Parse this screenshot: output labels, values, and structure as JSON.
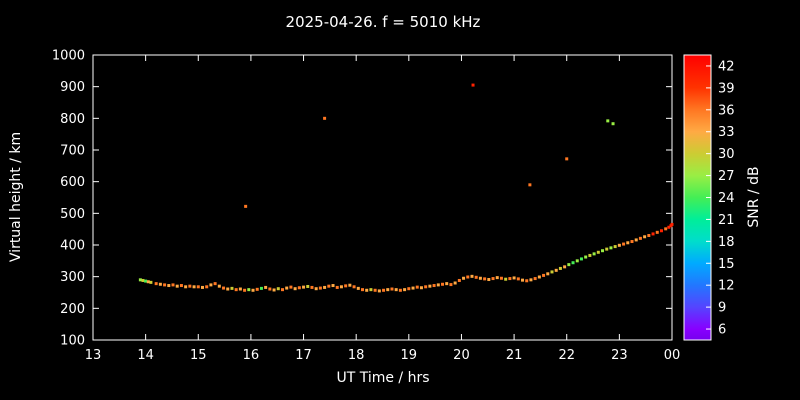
{
  "title": "2025-04-26. f = 5010 kHz",
  "colors": {
    "background": "#000000",
    "foreground": "#ffffff"
  },
  "chart_data": {
    "type": "scatter",
    "title": "2025-04-26. f = 5010 kHz",
    "xlabel": "UT Time / hrs",
    "ylabel": "Virtual height / km",
    "colorbar_label": "SNR / dB",
    "xlim": [
      13,
      24
    ],
    "ylim": [
      100,
      1000
    ],
    "grid": false,
    "x_tick_values": [
      13,
      14,
      15,
      16,
      17,
      18,
      19,
      20,
      21,
      22,
      23,
      24
    ],
    "x_tick_labels": [
      "13",
      "14",
      "15",
      "16",
      "17",
      "18",
      "19",
      "20",
      "21",
      "22",
      "23",
      "00"
    ],
    "y_tick_values": [
      100,
      200,
      300,
      400,
      500,
      600,
      700,
      800,
      900,
      1000
    ],
    "colorbar": {
      "min": 4.5,
      "max": 43.5,
      "tick_values": [
        6,
        9,
        12,
        15,
        18,
        21,
        24,
        27,
        30,
        33,
        36,
        39,
        42
      ],
      "stops": [
        {
          "v": 4.5,
          "c": "#7700ee"
        },
        {
          "v": 6,
          "c": "#8800ff"
        },
        {
          "v": 9,
          "c": "#5544ff"
        },
        {
          "v": 12,
          "c": "#2277ff"
        },
        {
          "v": 15,
          "c": "#00aaff"
        },
        {
          "v": 18,
          "c": "#00ddcc"
        },
        {
          "v": 21,
          "c": "#00ee99"
        },
        {
          "v": 24,
          "c": "#44ee55"
        },
        {
          "v": 27,
          "c": "#99ee44"
        },
        {
          "v": 30,
          "c": "#cccc33"
        },
        {
          "v": 33,
          "c": "#ffaa44"
        },
        {
          "v": 36,
          "c": "#ff7722"
        },
        {
          "v": 39,
          "c": "#ff3300"
        },
        {
          "v": 43.5,
          "c": "#ff0000"
        }
      ]
    },
    "snr_band_min": 6,
    "snr_band_size": 3,
    "palette": [
      "#8800ff",
      "#5544ff",
      "#2277ff",
      "#00aaff",
      "#00ddcc",
      "#00ee99",
      "#44ee55",
      "#99ee44",
      "#cccc33",
      "#ffaa44",
      "#ff7722",
      "#ff2200"
    ],
    "points": [
      [
        13.9,
        290,
        27
      ],
      [
        13.95,
        288,
        30
      ],
      [
        14.0,
        286,
        24
      ],
      [
        14.05,
        284,
        33
      ],
      [
        14.1,
        282,
        30
      ],
      [
        14.2,
        278,
        36
      ],
      [
        14.28,
        276,
        33
      ],
      [
        14.36,
        274,
        36
      ],
      [
        14.44,
        272,
        33
      ],
      [
        14.52,
        274,
        36
      ],
      [
        14.6,
        270,
        33
      ],
      [
        14.68,
        272,
        36
      ],
      [
        14.76,
        268,
        33
      ],
      [
        14.84,
        270,
        36
      ],
      [
        14.92,
        268,
        33
      ],
      [
        15.0,
        268,
        36
      ],
      [
        15.08,
        266,
        33
      ],
      [
        15.16,
        268,
        36
      ],
      [
        15.24,
        274,
        33
      ],
      [
        15.32,
        278,
        36
      ],
      [
        15.4,
        270,
        33
      ],
      [
        15.48,
        264,
        36
      ],
      [
        15.56,
        261,
        33
      ],
      [
        15.64,
        263,
        30
      ],
      [
        15.72,
        259,
        36
      ],
      [
        15.8,
        261,
        33
      ],
      [
        15.88,
        257,
        36
      ],
      [
        15.96,
        259,
        27
      ],
      [
        16.04,
        257,
        33
      ],
      [
        16.12,
        260,
        36
      ],
      [
        16.2,
        263,
        24
      ],
      [
        16.28,
        266,
        33
      ],
      [
        16.36,
        261,
        36
      ],
      [
        16.44,
        258,
        33
      ],
      [
        16.52,
        262,
        30
      ],
      [
        16.6,
        259,
        36
      ],
      [
        16.68,
        264,
        33
      ],
      [
        16.76,
        267,
        36
      ],
      [
        16.84,
        262,
        33
      ],
      [
        16.92,
        265,
        36
      ],
      [
        17.0,
        267,
        33
      ],
      [
        17.08,
        269,
        30
      ],
      [
        17.16,
        266,
        36
      ],
      [
        17.24,
        262,
        33
      ],
      [
        17.32,
        264,
        36
      ],
      [
        17.4,
        266,
        33
      ],
      [
        17.48,
        270,
        36
      ],
      [
        17.56,
        272,
        33
      ],
      [
        17.64,
        266,
        36
      ],
      [
        17.72,
        268,
        33
      ],
      [
        17.8,
        271,
        36
      ],
      [
        17.88,
        273,
        33
      ],
      [
        17.96,
        268,
        36
      ],
      [
        18.04,
        263,
        33
      ],
      [
        18.12,
        259,
        36
      ],
      [
        18.2,
        257,
        33
      ],
      [
        18.28,
        259,
        30
      ],
      [
        18.36,
        257,
        36
      ],
      [
        18.44,
        255,
        33
      ],
      [
        18.52,
        257,
        36
      ],
      [
        18.6,
        259,
        33
      ],
      [
        18.68,
        261,
        36
      ],
      [
        18.76,
        259,
        33
      ],
      [
        18.84,
        257,
        36
      ],
      [
        18.92,
        259,
        33
      ],
      [
        19.0,
        262,
        36
      ],
      [
        19.08,
        264,
        33
      ],
      [
        19.16,
        267,
        36
      ],
      [
        19.24,
        265,
        33
      ],
      [
        19.32,
        268,
        36
      ],
      [
        19.4,
        270,
        33
      ],
      [
        19.48,
        272,
        36
      ],
      [
        19.56,
        274,
        33
      ],
      [
        19.64,
        276,
        36
      ],
      [
        19.72,
        278,
        33
      ],
      [
        19.8,
        275,
        36
      ],
      [
        19.88,
        280,
        33
      ],
      [
        19.96,
        288,
        36
      ],
      [
        20.04,
        295,
        33
      ],
      [
        20.12,
        299,
        36
      ],
      [
        20.2,
        301,
        33
      ],
      [
        20.28,
        298,
        36
      ],
      [
        20.36,
        295,
        33
      ],
      [
        20.44,
        293,
        36
      ],
      [
        20.52,
        291,
        33
      ],
      [
        20.6,
        294,
        36
      ],
      [
        20.68,
        297,
        33
      ],
      [
        20.76,
        295,
        36
      ],
      [
        20.84,
        292,
        30
      ],
      [
        20.92,
        294,
        36
      ],
      [
        21.0,
        296,
        33
      ],
      [
        21.08,
        293,
        36
      ],
      [
        21.16,
        289,
        33
      ],
      [
        21.24,
        287,
        36
      ],
      [
        21.32,
        290,
        33
      ],
      [
        21.4,
        294,
        36
      ],
      [
        21.48,
        299,
        33
      ],
      [
        21.56,
        304,
        36
      ],
      [
        21.64,
        309,
        33
      ],
      [
        21.72,
        315,
        30
      ],
      [
        21.8,
        320,
        33
      ],
      [
        21.88,
        326,
        30
      ],
      [
        21.96,
        331,
        33
      ],
      [
        22.04,
        338,
        27
      ],
      [
        22.12,
        344,
        24
      ],
      [
        22.2,
        350,
        27
      ],
      [
        22.28,
        356,
        24
      ],
      [
        22.36,
        362,
        27
      ],
      [
        22.44,
        367,
        30
      ],
      [
        22.52,
        372,
        27
      ],
      [
        22.6,
        377,
        30
      ],
      [
        22.68,
        382,
        27
      ],
      [
        22.76,
        387,
        30
      ],
      [
        22.84,
        391,
        27
      ],
      [
        22.92,
        395,
        30
      ],
      [
        23.0,
        399,
        33
      ],
      [
        23.08,
        403,
        36
      ],
      [
        23.16,
        407,
        33
      ],
      [
        23.24,
        411,
        36
      ],
      [
        23.32,
        416,
        33
      ],
      [
        23.4,
        421,
        36
      ],
      [
        23.48,
        426,
        33
      ],
      [
        23.56,
        430,
        36
      ],
      [
        23.64,
        435,
        39
      ],
      [
        23.72,
        440,
        36
      ],
      [
        23.8,
        445,
        39
      ],
      [
        23.88,
        451,
        36
      ],
      [
        23.94,
        456,
        42
      ],
      [
        23.98,
        461,
        39
      ],
      [
        24.0,
        465,
        39
      ],
      [
        15.9,
        522,
        36
      ],
      [
        17.4,
        800,
        36
      ],
      [
        20.22,
        905,
        39
      ],
      [
        21.3,
        590,
        36
      ],
      [
        22.0,
        672,
        36
      ],
      [
        22.78,
        792,
        27
      ],
      [
        22.88,
        783,
        27
      ]
    ]
  }
}
